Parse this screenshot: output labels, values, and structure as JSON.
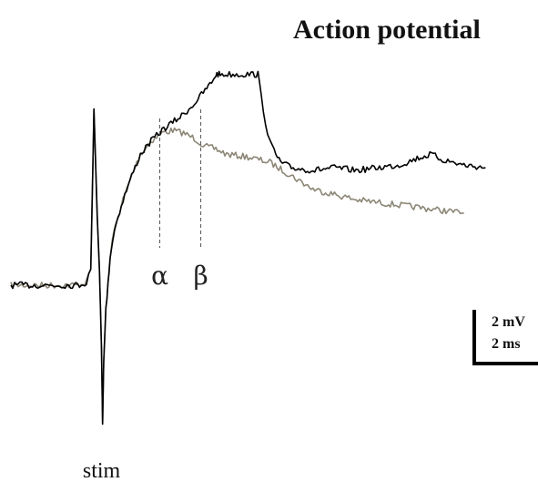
{
  "chart_data": {
    "type": "line",
    "title": "Action potential",
    "xlabel": "",
    "ylabel": "",
    "grid": false,
    "legend": "none",
    "xlim": [
      0,
      23.2
    ],
    "ylim": [
      -10.2,
      3.3
    ],
    "series": [
      {
        "color": "#000000",
        "x": [
          0.0,
          3.1,
          3.5,
          3.7,
          3.75,
          3.85,
          4.0,
          4.1,
          4.2,
          4.25,
          4.3,
          4.4,
          4.5,
          4.6,
          4.8,
          5.2,
          5.6,
          6.0,
          6.5,
          7.0,
          7.5,
          8.0,
          8.5,
          9.0,
          9.3,
          9.5,
          9.6,
          9.7,
          11.3,
          11.45,
          11.6,
          11.8,
          12.0,
          12.2,
          12.5,
          13.0,
          14.0,
          15.0,
          16.0,
          17.0,
          18.0,
          19.0,
          19.5,
          20.0,
          21.0,
          22.0
        ],
        "y": [
          -4.6,
          -4.6,
          -4.5,
          -4.0,
          -2.0,
          2.0,
          -2.0,
          -4.0,
          -7.0,
          -9.8,
          -7.5,
          -5.5,
          -4.6,
          -3.5,
          -2.5,
          -1.4,
          -0.5,
          0.3,
          0.8,
          1.2,
          1.5,
          1.8,
          2.2,
          2.7,
          3.0,
          3.3,
          3.3,
          3.3,
          3.3,
          3.3,
          2.5,
          1.5,
          0.8,
          0.4,
          0.0,
          -0.2,
          -0.3,
          -0.2,
          -0.3,
          -0.2,
          -0.1,
          0.2,
          0.3,
          0.1,
          -0.1,
          -0.2
        ]
      },
      {
        "color": "#8c8676",
        "x": [
          0.0,
          3.1,
          3.5,
          3.7,
          3.75,
          3.85,
          4.0,
          4.1,
          4.2,
          4.25,
          4.3,
          4.4,
          4.5,
          4.6,
          4.8,
          5.2,
          5.6,
          6.0,
          6.5,
          7.0,
          7.5,
          8.0,
          8.5,
          9.0,
          9.5,
          10.0,
          11.0,
          12.0,
          13.0,
          14.0,
          15.0,
          16.0,
          17.0,
          18.0,
          19.0,
          20.0,
          21.0
        ],
        "y": [
          -4.6,
          -4.6,
          -4.5,
          -4.0,
          -2.0,
          2.0,
          -2.0,
          -4.0,
          -7.0,
          -9.8,
          -7.5,
          -5.5,
          -4.6,
          -3.5,
          -2.5,
          -1.4,
          -0.5,
          0.3,
          0.8,
          1.1,
          1.2,
          1.1,
          0.9,
          0.6,
          0.5,
          0.3,
          0.2,
          0.0,
          -0.5,
          -1.0,
          -1.2,
          -1.4,
          -1.5,
          -1.6,
          -1.7,
          -1.8,
          -1.9
        ]
      }
    ],
    "annotations": [
      {
        "text": "α",
        "x": 6.9,
        "y": -3.8
      },
      {
        "text": "β",
        "x": 8.8,
        "y": -3.8
      },
      {
        "text": "stim",
        "x": 4.2,
        "y": -11.9
      }
    ],
    "scale_bar": {
      "voltage_label": "2 mV",
      "time_label": "2 ms"
    }
  }
}
